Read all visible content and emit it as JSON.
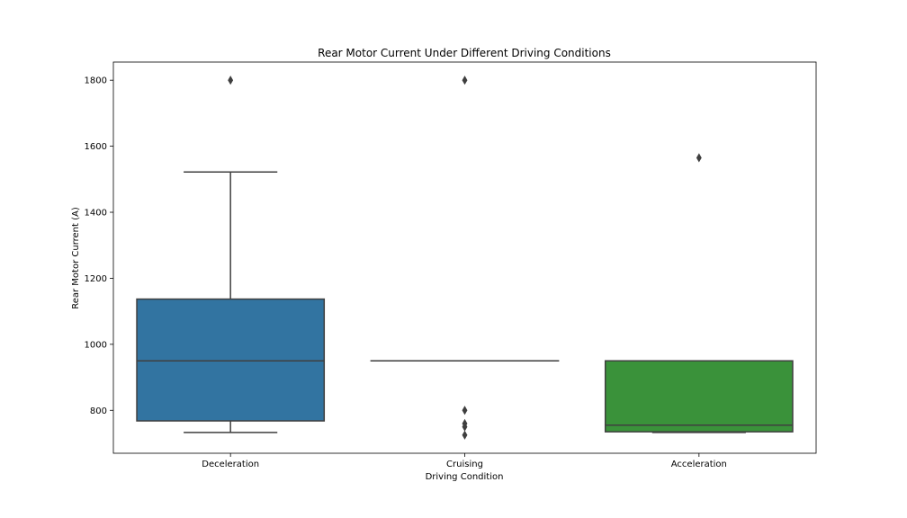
{
  "chart_data": {
    "type": "box",
    "title": "Rear Motor Current Under Different Driving Conditions",
    "xlabel": "Driving Condition",
    "ylabel": "Rear Motor Current (A)",
    "ylim": [
      670,
      1855
    ],
    "yticks": [
      800,
      1000,
      1200,
      1400,
      1600,
      1800
    ],
    "categories": [
      "Deceleration",
      "Cruising",
      "Acceleration"
    ],
    "boxes": [
      {
        "category": "Deceleration",
        "whisker_low": 733,
        "q1": 768,
        "median": 950,
        "q3": 1137,
        "whisker_high": 1522,
        "outliers": [
          1800
        ],
        "color": "#3274a1"
      },
      {
        "category": "Cruising",
        "whisker_low": 950,
        "q1": 950,
        "median": 950,
        "q3": 950,
        "whisker_high": 950,
        "outliers": [
          1800,
          800,
          760,
          750,
          725
        ],
        "color": "#e1812c"
      },
      {
        "category": "Acceleration",
        "whisker_low": 733,
        "q1": 735,
        "median": 755,
        "q3": 950,
        "whisker_high": 950,
        "outliers": [
          1565
        ],
        "color": "#3a923a"
      }
    ],
    "grid": false,
    "legend": "none"
  }
}
